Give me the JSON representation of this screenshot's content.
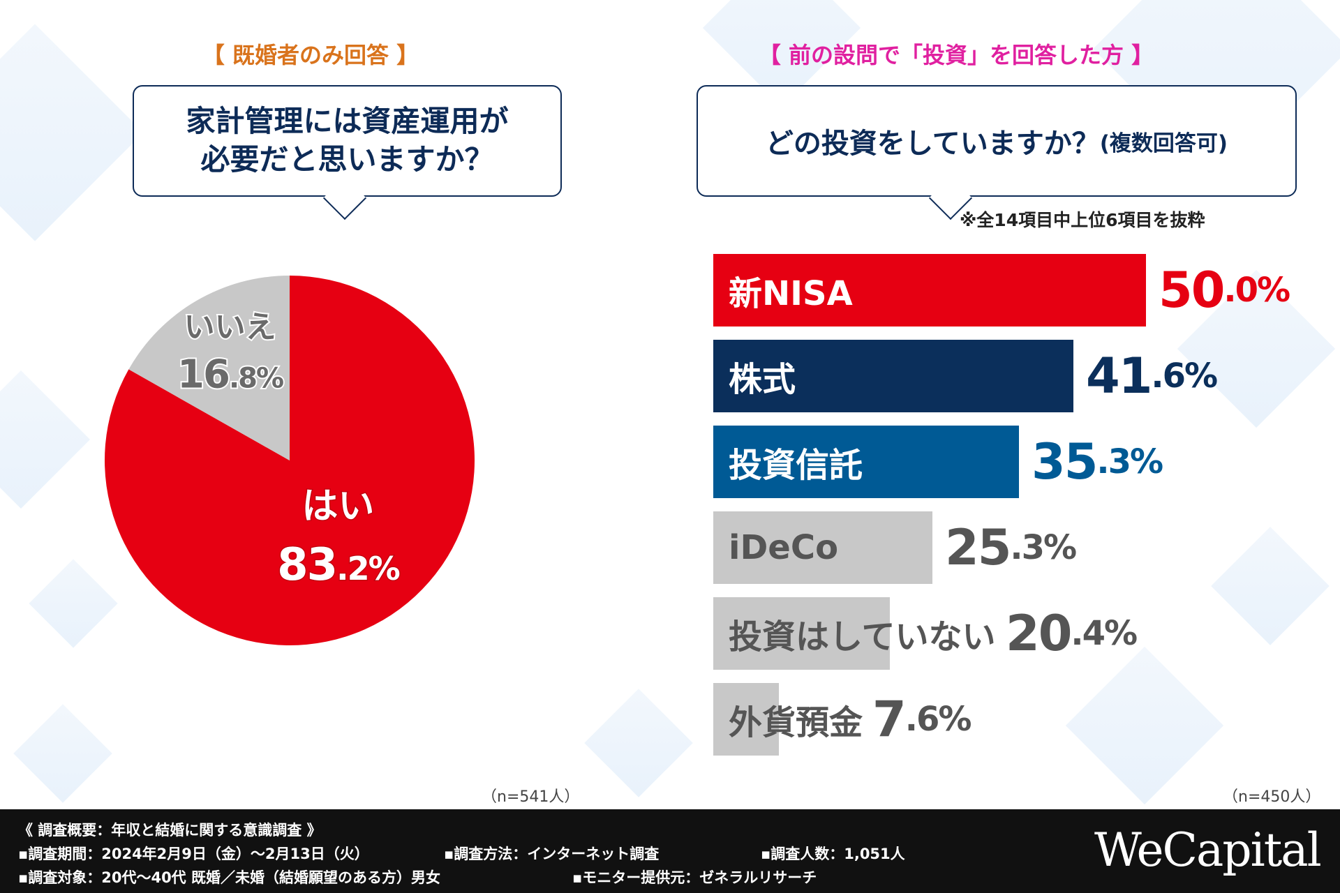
{
  "left_panel": {
    "tag": "【 既婚者のみ回答 】",
    "question_line1": "家計管理には資産運用が",
    "question_line2": "必要だと思いますか？",
    "n_label": "（n=541人）"
  },
  "right_panel": {
    "tag": "【 前の設問で「投資」を回答した方 】",
    "question_main": "どの投資をしていますか？",
    "question_sub": "(複数回答可)",
    "note": "※全14項目中上位6項目を抜粋",
    "n_label": "（n=450人）"
  },
  "chart_data": [
    {
      "type": "pie",
      "slices": [
        {
          "label": "はい",
          "value": 83.2,
          "value_int": "83",
          "value_dec": ".2%",
          "color": "#e60012"
        },
        {
          "label": "いいえ",
          "value": 16.8,
          "value_int": "16",
          "value_dec": ".8%",
          "color": "#c8c8c8"
        }
      ]
    },
    {
      "type": "bar",
      "orientation": "horizontal",
      "xlim": [
        0,
        50
      ],
      "bars": [
        {
          "label": "新NISA",
          "value": 50.0,
          "value_int": "50",
          "value_dec": ".0%",
          "color": "#e60012",
          "label_color": "#ffffff",
          "value_color": "#e60012"
        },
        {
          "label": "株式",
          "value": 41.6,
          "value_int": "41",
          "value_dec": ".6%",
          "color": "#0b2f5b",
          "label_color": "#ffffff",
          "value_color": "#0b2f5b"
        },
        {
          "label": "投資信託",
          "value": 35.3,
          "value_int": "35",
          "value_dec": ".3%",
          "color": "#005a95",
          "label_color": "#ffffff",
          "value_color": "#005a95"
        },
        {
          "label": "iDeCo",
          "value": 25.3,
          "value_int": "25",
          "value_dec": ".3%",
          "color": "#c8c8c8",
          "label_color": "#555555",
          "value_color": "#555555"
        },
        {
          "label": "投資はしていない",
          "value": 20.4,
          "value_int": "20",
          "value_dec": ".4%",
          "color": "#c8c8c8",
          "label_color": "#555555",
          "value_color": "#555555"
        },
        {
          "label": "外貨預金",
          "value": 7.6,
          "value_int": "7",
          "value_dec": ".6%",
          "color": "#c8c8c8",
          "label_color": "#555555",
          "value_color": "#555555"
        }
      ]
    }
  ],
  "footer": {
    "line1": "《 調査概要：年収と結婚に関する意識調査 》",
    "period": "▪調査期間：2024年2月9日（金）～2月13日（火）",
    "method": "▪調査方法：インターネット調査",
    "count": "▪調査人数：1,051人",
    "target": "▪調査対象：20代～40代 既婚／未婚（結婚願望のある方）男女",
    "provider": "▪モニター提供元：ゼネラルリサーチ",
    "logo": "WeCapital"
  }
}
